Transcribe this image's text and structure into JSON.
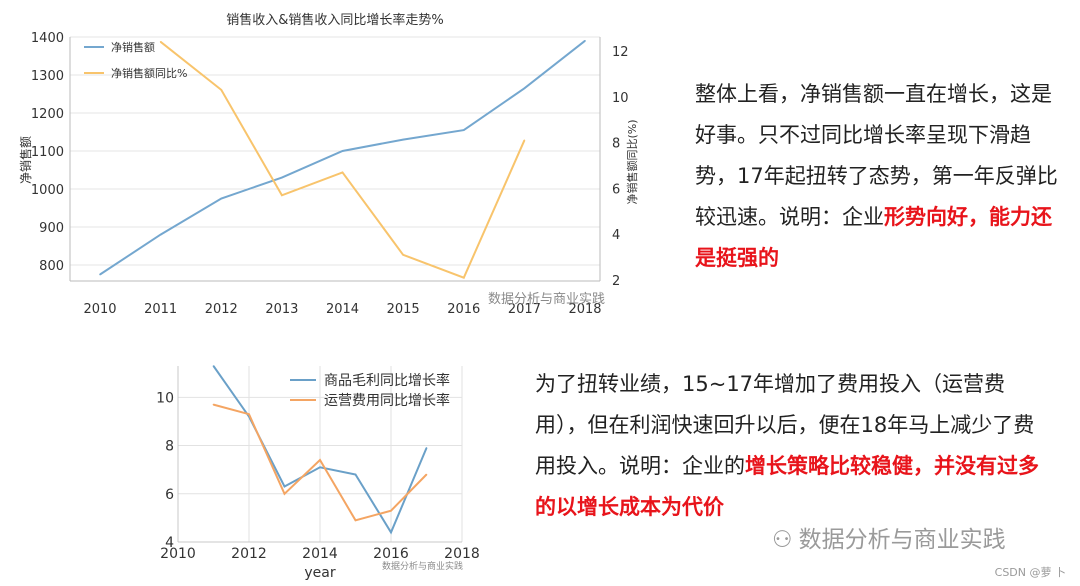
{
  "chart_data": [
    {
      "type": "line",
      "title": "销售收入&销售收入同比增长率走势%",
      "x": [
        2010,
        2011,
        2012,
        2013,
        2014,
        2015,
        2016,
        2017,
        2018
      ],
      "x_ticks": [
        "2010",
        "2011",
        "2012",
        "2013",
        "2014",
        "2015",
        "2016",
        "2017",
        "2018"
      ],
      "xlim": [
        2010,
        2018
      ],
      "ylabel": "净销售额",
      "ylim": [
        770,
        1400
      ],
      "y_ticks": [
        "800",
        "900",
        "1000",
        "1100",
        "1200",
        "1300",
        "1400"
      ],
      "y2label": "净销售额同比(%)",
      "y2lim": [
        2,
        12.5
      ],
      "y2_ticks": [
        "2",
        "4",
        "6",
        "8",
        "10",
        "12"
      ],
      "grid": "horizontal",
      "legend": "top-left",
      "series": [
        {
          "name": "净销售额",
          "axis": "left",
          "color": "#74a7cf",
          "values": [
            775,
            880,
            975,
            1030,
            1100,
            1130,
            1155,
            1265,
            1390
          ]
        },
        {
          "name": "净销售额同比%",
          "axis": "right",
          "color": "#f8c46c",
          "values": [
            null,
            12.4,
            10.3,
            5.7,
            6.7,
            3.1,
            2.1,
            8.1,
            null
          ]
        }
      ]
    },
    {
      "type": "line",
      "xlabel": "year",
      "xlim": [
        2010,
        2018
      ],
      "x_ticks": [
        "2010",
        "2012",
        "2014",
        "2016",
        "2018"
      ],
      "ylim": [
        4,
        11.3
      ],
      "y_ticks": [
        "4",
        "6",
        "8",
        "10"
      ],
      "grid": "both",
      "legend": "top-right",
      "x": [
        2011,
        2012,
        2013,
        2014,
        2015,
        2016,
        2017
      ],
      "series": [
        {
          "name": "商品毛利同比增长率",
          "color": "#6aa0c8",
          "values": [
            11.3,
            9.2,
            6.3,
            7.1,
            6.8,
            4.4,
            7.9
          ]
        },
        {
          "name": "运营费用同比增长率",
          "color": "#f4a563",
          "values": [
            9.7,
            9.3,
            6.0,
            7.4,
            4.9,
            5.3,
            6.8
          ]
        }
      ]
    }
  ],
  "text1": {
    "plain": "整体上看，净销售额一直在增长，这是好事。只不过同比增长率呈现下滑趋势，17年起扭转了态势，第一年反弹比较迅速。说明：企业",
    "highlight": "形势向好，能力还是挺强的"
  },
  "text2": {
    "plain": "为了扭转业绩，15~17年增加了费用投入（运营费用），但在利润快速回升以后，便在18年马上减少了费用投入。说明：企业的",
    "highlight1": "增长策略比较稳健",
    "mid": "，",
    "highlight2": "并没有过多的以增长成本为代价"
  },
  "watermarks": {
    "chart1": "数据分析与商业实践",
    "large": "数据分析与商业实践",
    "small": "数据分析与商业实践",
    "csdn": "CSDN @萝 卜"
  }
}
